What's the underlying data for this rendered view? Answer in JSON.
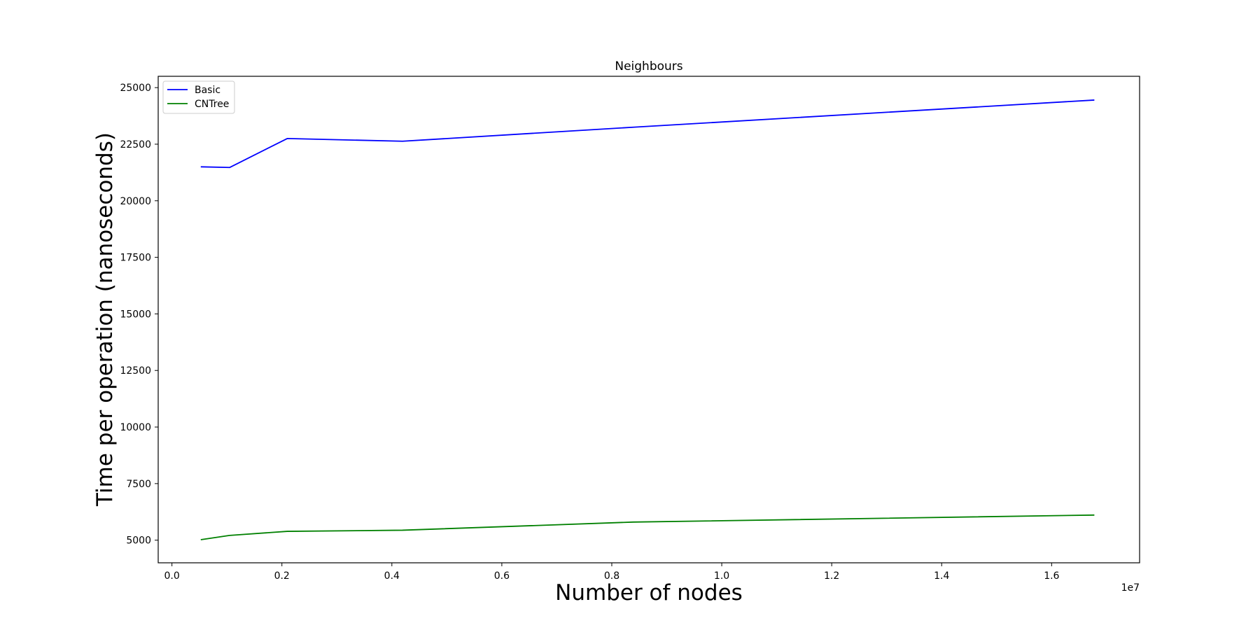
{
  "chart_data": {
    "type": "line",
    "title": "Neighbours",
    "xlabel": "Number of nodes",
    "ylabel": "Time per operation (nanoseconds)",
    "x_offset_label": "1e7",
    "xlim": [
      -250000,
      17600000
    ],
    "ylim": [
      4000,
      25500
    ],
    "xticks": [
      0,
      2000000,
      4000000,
      6000000,
      8000000,
      10000000,
      12000000,
      14000000,
      16000000
    ],
    "xtick_labels": [
      "0.0",
      "0.2",
      "0.4",
      "0.6",
      "0.8",
      "1.0",
      "1.2",
      "1.4",
      "1.6"
    ],
    "yticks": [
      5000,
      7500,
      10000,
      12500,
      15000,
      17500,
      20000,
      22500,
      25000
    ],
    "ytick_labels": [
      "5000",
      "7500",
      "10000",
      "12500",
      "15000",
      "17500",
      "20000",
      "22500",
      "25000"
    ],
    "grid": false,
    "legend": "top-left",
    "x": [
      524288,
      1048576,
      2097152,
      4194304,
      8388608,
      16777216
    ],
    "series": [
      {
        "name": "Basic",
        "color": "#0000ff",
        "values": [
          21500,
          21470,
          22750,
          22630,
          23250,
          24450
        ]
      },
      {
        "name": "CNTree",
        "color": "#008000",
        "values": [
          5020,
          5210,
          5390,
          5440,
          5800,
          6110
        ]
      }
    ]
  }
}
